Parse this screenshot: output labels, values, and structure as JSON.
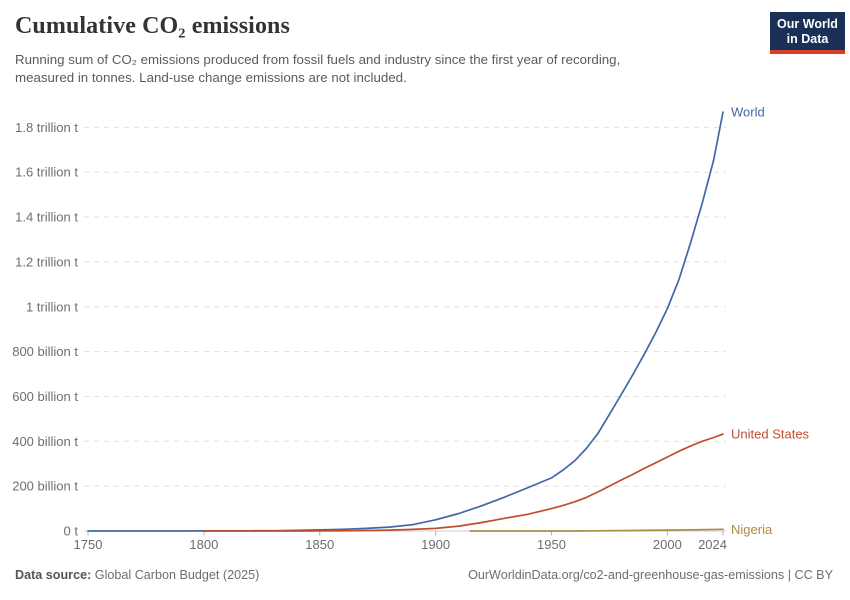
{
  "header": {
    "title": "Cumulative CO₂ emissions",
    "subtitle_line1": "Running sum of CO₂ emissions produced from fossil fuels and industry since the first year of recording,",
    "subtitle_line2": "measured in tonnes. Land-use change emissions are not included."
  },
  "logo": {
    "line1": "Our World",
    "line2": "in Data",
    "bg_color": "#1a3056",
    "accent_color": "#d93b2c"
  },
  "footer": {
    "source_label": "Data source:",
    "source_value": "Global Carbon Budget (2025)",
    "credit": "OurWorldinData.org/co2-and-greenhouse-gas-emissions | CC BY"
  },
  "chart_data": {
    "type": "line",
    "title": "Cumulative CO₂ emissions",
    "xlabel": "",
    "ylabel": "",
    "unit": "billion tonnes CO₂",
    "grid": "horizontal dashed",
    "legend_position": "end-of-line labels",
    "x_domain": [
      1750,
      2024
    ],
    "ylim": [
      0,
      1900
    ],
    "x_ticks": [
      1750,
      1800,
      1850,
      1900,
      1950,
      2000,
      2024
    ],
    "y_ticks": [
      {
        "value": 0,
        "label": "0 t"
      },
      {
        "value": 200,
        "label": "200 billion t"
      },
      {
        "value": 400,
        "label": "400 billion t"
      },
      {
        "value": 600,
        "label": "600 billion t"
      },
      {
        "value": 800,
        "label": "800 billion t"
      },
      {
        "value": 1000,
        "label": "1 trillion t"
      },
      {
        "value": 1200,
        "label": "1.2 trillion t"
      },
      {
        "value": 1400,
        "label": "1.4 trillion t"
      },
      {
        "value": 1600,
        "label": "1.6 trillion t"
      },
      {
        "value": 1800,
        "label": "1.8 trillion t"
      }
    ],
    "colors": {
      "grid": "#dedede",
      "zero_line": "#cccccc",
      "tick": "#b3b3b3",
      "axis_text": "#6e6e6e"
    },
    "series": [
      {
        "name": "World",
        "color": "#4068a6",
        "points": [
          [
            1750,
            0.01
          ],
          [
            1760,
            0.02
          ],
          [
            1770,
            0.04
          ],
          [
            1780,
            0.06
          ],
          [
            1790,
            0.1
          ],
          [
            1800,
            0.3
          ],
          [
            1810,
            0.5
          ],
          [
            1820,
            0.8
          ],
          [
            1830,
            1.4
          ],
          [
            1840,
            2.6
          ],
          [
            1850,
            4.8
          ],
          [
            1860,
            7.5
          ],
          [
            1870,
            11.5
          ],
          [
            1880,
            17.5
          ],
          [
            1890,
            28
          ],
          [
            1900,
            50
          ],
          [
            1910,
            78
          ],
          [
            1920,
            113
          ],
          [
            1930,
            152
          ],
          [
            1940,
            194
          ],
          [
            1950,
            237
          ],
          [
            1955,
            272
          ],
          [
            1960,
            313
          ],
          [
            1965,
            368
          ],
          [
            1970,
            435
          ],
          [
            1975,
            520
          ],
          [
            1980,
            607
          ],
          [
            1985,
            695
          ],
          [
            1990,
            788
          ],
          [
            1995,
            885
          ],
          [
            2000,
            992
          ],
          [
            2005,
            1122
          ],
          [
            2010,
            1285
          ],
          [
            2015,
            1460
          ],
          [
            2020,
            1655
          ],
          [
            2024,
            1868
          ]
        ]
      },
      {
        "name": "United States",
        "color": "#c14d30",
        "points": [
          [
            1800,
            0.01
          ],
          [
            1820,
            0.05
          ],
          [
            1840,
            0.2
          ],
          [
            1850,
            0.5
          ],
          [
            1860,
            1.1
          ],
          [
            1870,
            2.2
          ],
          [
            1880,
            4
          ],
          [
            1890,
            7
          ],
          [
            1900,
            11.5
          ],
          [
            1910,
            22
          ],
          [
            1920,
            38
          ],
          [
            1930,
            57
          ],
          [
            1940,
            75
          ],
          [
            1950,
            100
          ],
          [
            1955,
            114
          ],
          [
            1960,
            130
          ],
          [
            1965,
            150
          ],
          [
            1970,
            174
          ],
          [
            1975,
            200
          ],
          [
            1980,
            227
          ],
          [
            1985,
            252
          ],
          [
            1990,
            279
          ],
          [
            1995,
            304
          ],
          [
            2000,
            330
          ],
          [
            2005,
            356
          ],
          [
            2010,
            379
          ],
          [
            2015,
            400
          ],
          [
            2020,
            417
          ],
          [
            2024,
            432
          ]
        ]
      },
      {
        "name": "Nigeria",
        "color": "#ae8a44",
        "points": [
          [
            1915,
            0.001
          ],
          [
            1930,
            0.01
          ],
          [
            1940,
            0.03
          ],
          [
            1950,
            0.07
          ],
          [
            1960,
            0.2
          ],
          [
            1970,
            0.7
          ],
          [
            1980,
            1.8
          ],
          [
            1990,
            2.8
          ],
          [
            2000,
            3.8
          ],
          [
            2010,
            5.2
          ],
          [
            2024,
            7.6
          ]
        ]
      }
    ]
  }
}
